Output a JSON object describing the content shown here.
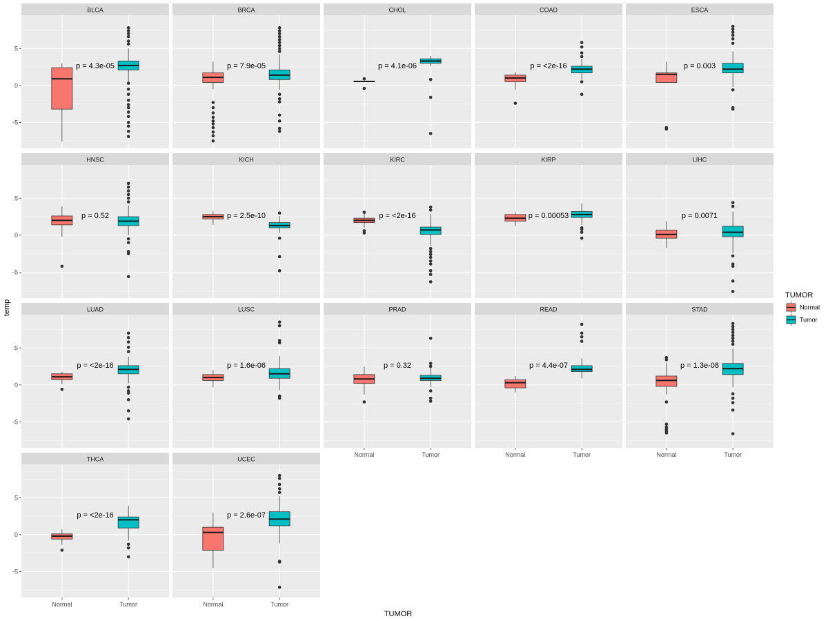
{
  "chart_data": {
    "type": "boxplot",
    "facet_layout": "5 columns x 4 rows",
    "xlabel": "TUMOR",
    "ylabel": "temp",
    "ylim": [
      -8.5,
      9.5
    ],
    "y_ticks": [
      -5,
      0,
      5
    ],
    "y_tick_labels": [
      "-5",
      "0",
      "5"
    ],
    "x_categories": [
      "Normal",
      "Tumor"
    ],
    "colors": {
      "Normal": "#f8766d",
      "Tumor": "#00bfc4"
    },
    "legend": {
      "title": "TUMOR",
      "entries": [
        "Normal",
        "Tumor"
      ],
      "position": "right"
    },
    "panels": [
      {
        "name": "BLCA",
        "pvalue": "p = 4.3e-05",
        "normal": {
          "q1": -3.2,
          "median": 0.9,
          "q3": 2.4,
          "lo": -7.6,
          "hi": 3.0,
          "outliers": []
        },
        "tumor": {
          "q1": 2.1,
          "median": 2.7,
          "q3": 3.3,
          "lo": 0.5,
          "hi": 5.0,
          "outliers": [
            7.8,
            7.4,
            7.0,
            6.6,
            6.0,
            5.6,
            0.3,
            -0.5,
            -1.2,
            -2.0,
            -2.6,
            -3.0,
            -3.6,
            -4.2,
            -5.0,
            -5.5,
            -6.2,
            -6.9
          ]
        }
      },
      {
        "name": "BRCA",
        "pvalue": "p = 7.9e-05",
        "normal": {
          "q1": 0.4,
          "median": 1.1,
          "q3": 1.7,
          "lo": -0.5,
          "hi": 3.2,
          "outliers": [
            -2.3,
            -3.0,
            -3.7,
            -4.3,
            -4.8,
            -5.2,
            -5.7,
            -6.3,
            -6.8,
            -7.5
          ]
        },
        "tumor": {
          "q1": 0.8,
          "median": 1.4,
          "q3": 2.1,
          "lo": -0.6,
          "hi": 4.2,
          "outliers": [
            7.8,
            7.4,
            7.0,
            6.6,
            6.2,
            5.8,
            5.4,
            5.0,
            4.6,
            -1.2,
            -1.8,
            -2.2,
            -4.0,
            -4.8,
            -5.8,
            -6.2
          ]
        }
      },
      {
        "name": "CHOL",
        "pvalue": "p = 4.1e-06",
        "normal": {
          "q1": 0.5,
          "median": 0.55,
          "q3": 0.6,
          "lo": 0.45,
          "hi": 0.65,
          "outliers": [
            0.9,
            -0.4
          ]
        },
        "tumor": {
          "q1": 3.0,
          "median": 3.3,
          "q3": 3.6,
          "lo": 2.6,
          "hi": 4.0,
          "outliers": [
            0.8,
            -1.6,
            -6.5
          ]
        }
      },
      {
        "name": "COAD",
        "pvalue": "p = <2e-16",
        "normal": {
          "q1": 0.5,
          "median": 1.0,
          "q3": 1.4,
          "lo": -0.6,
          "hi": 1.8,
          "outliers": [
            -2.4
          ]
        },
        "tumor": {
          "q1": 1.7,
          "median": 2.2,
          "q3": 2.6,
          "lo": 0.8,
          "hi": 3.6,
          "outliers": [
            5.8,
            5.2,
            4.4,
            3.9,
            0.5,
            -1.2
          ]
        }
      },
      {
        "name": "ESCA",
        "pvalue": "p = 0.003",
        "normal": {
          "q1": 0.4,
          "median": 1.5,
          "q3": 1.7,
          "lo": 0.3,
          "hi": 3.2,
          "outliers": [
            -5.7,
            -5.9
          ]
        },
        "tumor": {
          "q1": 1.7,
          "median": 2.2,
          "q3": 3.0,
          "lo": -0.2,
          "hi": 4.6,
          "outliers": [
            8.0,
            7.6,
            7.2,
            6.8,
            6.3,
            5.7,
            -0.6,
            -3.0,
            -3.2
          ]
        }
      },
      {
        "name": "HNSC",
        "pvalue": "p = 0.52",
        "normal": {
          "q1": 1.4,
          "median": 2.0,
          "q3": 2.6,
          "lo": -0.2,
          "hi": 3.9,
          "outliers": [
            -4.2
          ]
        },
        "tumor": {
          "q1": 1.3,
          "median": 1.9,
          "q3": 2.5,
          "lo": 0.0,
          "hi": 4.0,
          "outliers": [
            7.0,
            6.5,
            6.0,
            5.5,
            5.0,
            4.5,
            -0.5,
            -1.0,
            -2.2,
            -2.5,
            -5.6
          ]
        }
      },
      {
        "name": "KICH",
        "pvalue": "p = 2.5e-10",
        "normal": {
          "q1": 2.2,
          "median": 2.5,
          "q3": 2.8,
          "lo": 1.4,
          "hi": 3.2,
          "outliers": []
        },
        "tumor": {
          "q1": 1.0,
          "median": 1.3,
          "q3": 1.7,
          "lo": 0.3,
          "hi": 2.6,
          "outliers": [
            3.0,
            -0.4,
            -2.9,
            -4.8
          ]
        }
      },
      {
        "name": "KIRC",
        "pvalue": "p = <2e-16",
        "normal": {
          "q1": 1.7,
          "median": 2.0,
          "q3": 2.3,
          "lo": 1.0,
          "hi": 2.9,
          "outliers": [
            3.1,
            0.6,
            0.3
          ]
        },
        "tumor": {
          "q1": 0.1,
          "median": 0.7,
          "q3": 1.1,
          "lo": -1.4,
          "hi": 2.9,
          "outliers": [
            3.8,
            3.4,
            -1.8,
            -2.2,
            -2.6,
            -3.0,
            -3.5,
            -3.9,
            -4.8,
            -5.3,
            -6.3
          ]
        }
      },
      {
        "name": "KIRP",
        "pvalue": "p = 0.00053",
        "normal": {
          "q1": 1.9,
          "median": 2.3,
          "q3": 2.8,
          "lo": 1.2,
          "hi": 3.1,
          "outliers": []
        },
        "tumor": {
          "q1": 2.4,
          "median": 2.8,
          "q3": 3.2,
          "lo": 1.4,
          "hi": 4.3,
          "outliers": [
            1.0,
            0.8,
            0.4,
            -0.4
          ]
        }
      },
      {
        "name": "LIHC",
        "pvalue": "p = 0.0071",
        "normal": {
          "q1": -0.4,
          "median": 0.1,
          "q3": 0.7,
          "lo": -1.7,
          "hi": 1.9,
          "outliers": []
        },
        "tumor": {
          "q1": -0.2,
          "median": 0.4,
          "q3": 1.2,
          "lo": -2.4,
          "hi": 3.2,
          "outliers": [
            4.4,
            3.9,
            -2.8,
            -3.9,
            -4.2,
            -6.2,
            -7.6
          ]
        }
      },
      {
        "name": "LUAD",
        "pvalue": "p = <2e-16",
        "normal": {
          "q1": 0.7,
          "median": 1.1,
          "q3": 1.5,
          "lo": 0.1,
          "hi": 1.8,
          "outliers": [
            -0.6
          ]
        },
        "tumor": {
          "q1": 1.5,
          "median": 2.1,
          "q3": 2.6,
          "lo": 0.2,
          "hi": 3.8,
          "outliers": [
            7.0,
            6.4,
            5.8,
            5.1,
            4.5,
            -0.3,
            -0.8,
            -1.1,
            -2.0,
            -3.5,
            -4.6
          ]
        }
      },
      {
        "name": "LUSC",
        "pvalue": "p = 1.6e-06",
        "normal": {
          "q1": 0.6,
          "median": 1.0,
          "q3": 1.4,
          "lo": -0.3,
          "hi": 2.0,
          "outliers": []
        },
        "tumor": {
          "q1": 0.9,
          "median": 1.5,
          "q3": 2.2,
          "lo": -0.7,
          "hi": 3.9,
          "outliers": [
            8.5,
            8.0,
            6.0,
            5.7,
            -1.5,
            -1.8
          ]
        }
      },
      {
        "name": "PRAD",
        "pvalue": "p = 0.32",
        "normal": {
          "q1": 0.2,
          "median": 0.8,
          "q3": 1.4,
          "lo": -1.3,
          "hi": 2.5,
          "outliers": [
            -2.3
          ]
        },
        "tumor": {
          "q1": 0.6,
          "median": 0.9,
          "q3": 1.3,
          "lo": -0.3,
          "hi": 2.4,
          "outliers": [
            6.3,
            2.9,
            2.5,
            -0.8,
            -1.8,
            -2.2
          ]
        }
      },
      {
        "name": "READ",
        "pvalue": "p = 4.4e-07",
        "normal": {
          "q1": -0.4,
          "median": 0.3,
          "q3": 0.7,
          "lo": -1.0,
          "hi": 1.2,
          "outliers": []
        },
        "tumor": {
          "q1": 1.8,
          "median": 2.1,
          "q3": 2.6,
          "lo": 0.9,
          "hi": 3.6,
          "outliers": [
            8.2,
            7.0,
            6.5,
            5.9
          ]
        }
      },
      {
        "name": "STAD",
        "pvalue": "p = 1.3e-08",
        "normal": {
          "q1": -0.2,
          "median": 0.6,
          "q3": 1.2,
          "lo": -1.3,
          "hi": 3.0,
          "outliers": [
            3.7,
            3.4,
            -2.3,
            -5.3,
            -5.7,
            -6.0,
            -6.3,
            -6.5
          ]
        },
        "tumor": {
          "q1": 1.4,
          "median": 2.2,
          "q3": 2.9,
          "lo": -0.3,
          "hi": 4.9,
          "outliers": [
            8.3,
            7.9,
            7.5,
            7.1,
            6.7,
            6.3,
            5.9,
            5.5,
            -1.2,
            -1.8,
            -2.4,
            -3.4,
            -6.6
          ]
        }
      },
      {
        "name": "THCA",
        "pvalue": "p = <2e-16",
        "normal": {
          "q1": -0.6,
          "median": -0.2,
          "q3": 0.1,
          "lo": -1.4,
          "hi": 0.7,
          "outliers": [
            -2.1
          ]
        },
        "tumor": {
          "q1": 0.9,
          "median": 2.0,
          "q3": 2.4,
          "lo": -0.8,
          "hi": 3.9,
          "outliers": [
            -1.3,
            -1.8,
            -3.0
          ]
        }
      },
      {
        "name": "UCEC",
        "pvalue": "p = 2.6e-07",
        "normal": {
          "q1": -2.1,
          "median": 0.3,
          "q3": 1.0,
          "lo": -4.5,
          "hi": 3.0,
          "outliers": []
        },
        "tumor": {
          "q1": 1.2,
          "median": 2.1,
          "q3": 3.1,
          "lo": -1.2,
          "hi": 5.2,
          "outliers": [
            8.0,
            7.6,
            6.8,
            6.2,
            5.7,
            -3.6,
            -3.7,
            -7.1
          ]
        }
      }
    ]
  }
}
